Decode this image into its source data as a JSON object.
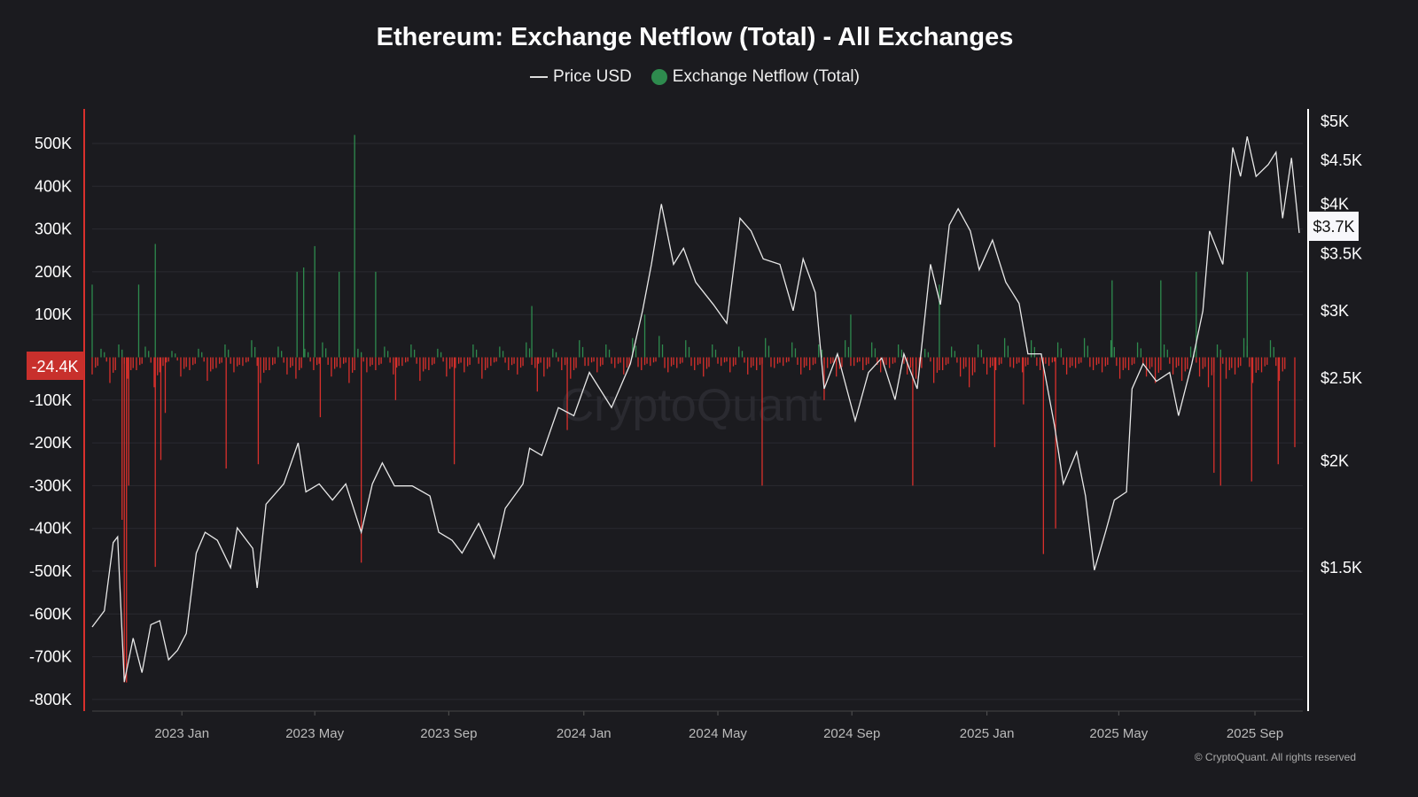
{
  "chart_data": {
    "type": "bar+line",
    "title": "Ethereum: Exchange Netflow (Total) - All Exchanges",
    "legend": [
      "Price USD",
      "Exchange Netflow (Total)"
    ],
    "legend_position": "top-center",
    "start_date": "2022-10-12",
    "x_unit": "days since start_date",
    "x_ticks": [
      {
        "day": 81,
        "label": "2023 Jan"
      },
      {
        "day": 201,
        "label": "2023 May"
      },
      {
        "day": 322,
        "label": "2023 Sep"
      },
      {
        "day": 444,
        "label": "2024 Jan"
      },
      {
        "day": 565,
        "label": "2024 May"
      },
      {
        "day": 686,
        "label": "2024 Sep"
      },
      {
        "day": 808,
        "label": "2025 Jan"
      },
      {
        "day": 927,
        "label": "2025 May"
      },
      {
        "day": 1050,
        "label": "2025 Sep"
      }
    ],
    "x_range": [
      0,
      1090
    ],
    "left_axis": {
      "label": "Exchange Netflow (Total)",
      "unit": "K ETH",
      "range": [
        -820,
        580
      ],
      "ticks": [
        {
          "v": 500,
          "label": "500K"
        },
        {
          "v": 400,
          "label": "400K"
        },
        {
          "v": 300,
          "label": "300K"
        },
        {
          "v": 200,
          "label": "200K"
        },
        {
          "v": 100,
          "label": "100K"
        },
        {
          "v": -100,
          "label": "-100K"
        },
        {
          "v": -200,
          "label": "-200K"
        },
        {
          "v": -300,
          "label": "-300K"
        },
        {
          "v": -400,
          "label": "-400K"
        },
        {
          "v": -500,
          "label": "-500K"
        },
        {
          "v": -600,
          "label": "-600K"
        },
        {
          "v": -700,
          "label": "-700K"
        },
        {
          "v": -800,
          "label": "-800K"
        }
      ],
      "current_label": "-24.4K",
      "current_value": -24.4
    },
    "right_axis": {
      "label": "Price USD",
      "scale": "log",
      "ticks": [
        {
          "v": 5000,
          "label": "$5K"
        },
        {
          "v": 4500,
          "label": "$4.5K"
        },
        {
          "v": 4000,
          "label": "$4K"
        },
        {
          "v": 3500,
          "label": "$3.5K"
        },
        {
          "v": 3000,
          "label": "$3K"
        },
        {
          "v": 2500,
          "label": "$2.5K"
        },
        {
          "v": 2000,
          "label": "$2K"
        },
        {
          "v": 1500,
          "label": "$1.5K"
        }
      ],
      "current_label": "$3.7K",
      "current_value": 3700
    },
    "grid": true,
    "colors": {
      "price": "#e8e8e8",
      "inflow": "#2e8b4e",
      "outflow": "#d9302c",
      "left_axis": "#d9302c",
      "right_axis": "#ffffff"
    },
    "price": [
      [
        0,
        1278
      ],
      [
        11,
        1335
      ],
      [
        19,
        1605
      ],
      [
        23,
        1630
      ],
      [
        29,
        1102
      ],
      [
        37,
        1240
      ],
      [
        45,
        1130
      ],
      [
        53,
        1286
      ],
      [
        61,
        1300
      ],
      [
        69,
        1170
      ],
      [
        77,
        1200
      ],
      [
        85,
        1256
      ],
      [
        94,
        1560
      ],
      [
        102,
        1650
      ],
      [
        113,
        1615
      ],
      [
        125,
        1500
      ],
      [
        131,
        1670
      ],
      [
        145,
        1580
      ],
      [
        149,
        1420
      ],
      [
        157,
        1780
      ],
      [
        173,
        1880
      ],
      [
        186,
        2100
      ],
      [
        193,
        1840
      ],
      [
        205,
        1880
      ],
      [
        217,
        1800
      ],
      [
        229,
        1880
      ],
      [
        243,
        1650
      ],
      [
        253,
        1880
      ],
      [
        262,
        1990
      ],
      [
        273,
        1870
      ],
      [
        289,
        1870
      ],
      [
        305,
        1820
      ],
      [
        313,
        1650
      ],
      [
        325,
        1615
      ],
      [
        334,
        1560
      ],
      [
        349,
        1690
      ],
      [
        363,
        1540
      ],
      [
        373,
        1760
      ],
      [
        389,
        1880
      ],
      [
        395,
        2070
      ],
      [
        406,
        2030
      ],
      [
        421,
        2310
      ],
      [
        435,
        2260
      ],
      [
        449,
        2540
      ],
      [
        469,
        2310
      ],
      [
        486,
        2600
      ],
      [
        497,
        3000
      ],
      [
        505,
        3400
      ],
      [
        514,
        4000
      ],
      [
        525,
        3400
      ],
      [
        534,
        3550
      ],
      [
        545,
        3240
      ],
      [
        561,
        3050
      ],
      [
        573,
        2900
      ],
      [
        585,
        3850
      ],
      [
        595,
        3720
      ],
      [
        606,
        3450
      ],
      [
        621,
        3400
      ],
      [
        633,
        3000
      ],
      [
        642,
        3450
      ],
      [
        653,
        3150
      ],
      [
        661,
        2430
      ],
      [
        673,
        2670
      ],
      [
        689,
        2230
      ],
      [
        701,
        2540
      ],
      [
        713,
        2640
      ],
      [
        725,
        2360
      ],
      [
        733,
        2670
      ],
      [
        745,
        2430
      ],
      [
        757,
        3400
      ],
      [
        766,
        3050
      ],
      [
        774,
        3780
      ],
      [
        782,
        3950
      ],
      [
        793,
        3720
      ],
      [
        801,
        3350
      ],
      [
        813,
        3630
      ],
      [
        825,
        3240
      ],
      [
        837,
        3060
      ],
      [
        845,
        2670
      ],
      [
        857,
        2670
      ],
      [
        869,
        2200
      ],
      [
        877,
        1880
      ],
      [
        889,
        2050
      ],
      [
        897,
        1820
      ],
      [
        905,
        1490
      ],
      [
        915,
        1650
      ],
      [
        923,
        1800
      ],
      [
        934,
        1840
      ],
      [
        939,
        2430
      ],
      [
        949,
        2600
      ],
      [
        961,
        2480
      ],
      [
        973,
        2540
      ],
      [
        981,
        2260
      ],
      [
        993,
        2600
      ],
      [
        1003,
        3000
      ],
      [
        1009,
        3720
      ],
      [
        1021,
        3400
      ],
      [
        1030,
        4660
      ],
      [
        1037,
        4310
      ],
      [
        1043,
        4800
      ],
      [
        1051,
        4310
      ],
      [
        1062,
        4450
      ],
      [
        1069,
        4600
      ],
      [
        1075,
        3850
      ],
      [
        1083,
        4530
      ],
      [
        1090,
        3700
      ]
    ],
    "netflow_spikes": [
      [
        0,
        170
      ],
      [
        27,
        -380
      ],
      [
        29,
        -760
      ],
      [
        31,
        -760
      ],
      [
        33,
        -300
      ],
      [
        42,
        170
      ],
      [
        57,
        265
      ],
      [
        57,
        -490
      ],
      [
        62,
        -240
      ],
      [
        66,
        -130
      ],
      [
        121,
        -260
      ],
      [
        150,
        -250
      ],
      [
        185,
        200
      ],
      [
        191,
        210
      ],
      [
        201,
        260
      ],
      [
        206,
        -140
      ],
      [
        223,
        200
      ],
      [
        237,
        520
      ],
      [
        243,
        -480
      ],
      [
        256,
        200
      ],
      [
        274,
        -100
      ],
      [
        327,
        -250
      ],
      [
        397,
        120
      ],
      [
        402,
        -80
      ],
      [
        429,
        -170
      ],
      [
        499,
        100
      ],
      [
        605,
        -300
      ],
      [
        661,
        -100
      ],
      [
        685,
        100
      ],
      [
        741,
        -300
      ],
      [
        765,
        170
      ],
      [
        815,
        -210
      ],
      [
        841,
        -110
      ],
      [
        859,
        -460
      ],
      [
        870,
        -400
      ],
      [
        921,
        180
      ],
      [
        965,
        180
      ],
      [
        997,
        200
      ],
      [
        1013,
        -270
      ],
      [
        1019,
        -300
      ],
      [
        1043,
        200
      ],
      [
        1047,
        -290
      ],
      [
        1071,
        -250
      ],
      [
        1086,
        -210
      ]
    ],
    "netflow_minor_step": 8,
    "netflow_minor": [
      -40,
      20,
      -60,
      30,
      -50,
      -30,
      25,
      -70,
      -20,
      15,
      -45,
      -30,
      20,
      -55,
      -25,
      30,
      -35,
      -20,
      40,
      -60,
      -30,
      25,
      -40,
      -50,
      20,
      -30,
      35,
      -45,
      -25,
      -60,
      20,
      -35,
      -30,
      25,
      -40,
      -20,
      30,
      -55,
      -30,
      20,
      -45,
      -25,
      -35,
      30,
      -50,
      -20,
      25,
      -30,
      -40,
      35,
      -25,
      -45,
      20,
      -30,
      -50,
      40,
      -20,
      -35,
      30,
      -25,
      -40,
      45,
      -30,
      -20,
      50,
      -35,
      -25,
      40,
      -30,
      -45,
      30,
      -20,
      -35,
      25,
      -40,
      -30,
      45,
      -25,
      -20,
      35,
      -40,
      -30,
      30,
      -25,
      -45,
      40,
      -20,
      -30,
      35,
      -35,
      -25,
      30,
      -40,
      -50,
      20,
      -60,
      -30,
      25,
      -45,
      -70,
      30,
      -40,
      -30,
      45,
      -25,
      -35,
      40,
      -30,
      -20,
      35,
      -40,
      -25,
      45,
      -30,
      -35,
      40,
      -50,
      -30,
      35,
      -45,
      -60,
      30,
      -40,
      -55,
      25,
      -45,
      -70,
      30,
      -50,
      -40,
      45,
      -60,
      -35,
      40,
      -55
    ]
  },
  "footer": {
    "copyright": "© CryptoQuant. All rights reserved"
  },
  "watermark": "CryptoQuant"
}
